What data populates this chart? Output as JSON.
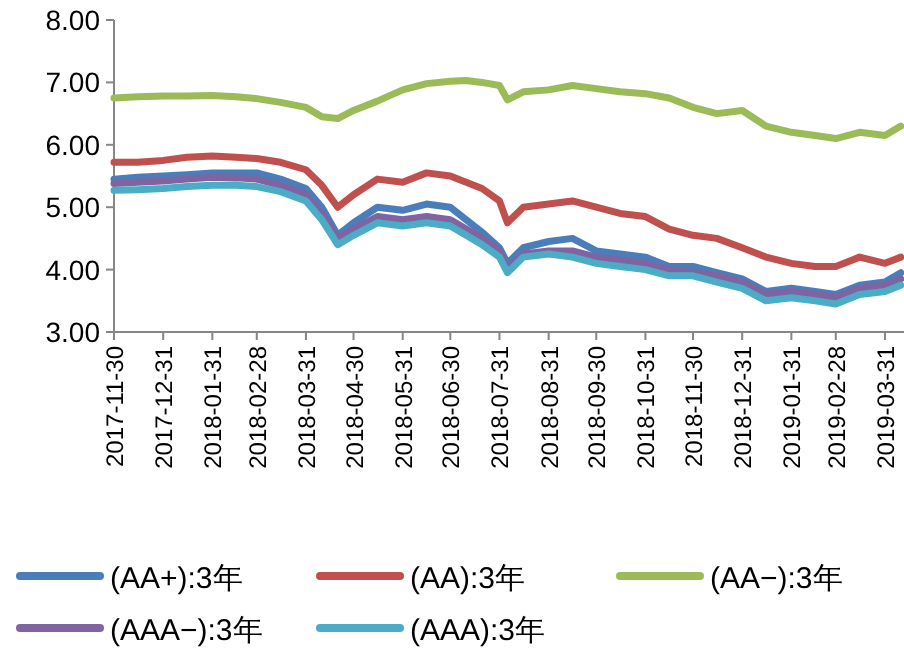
{
  "chart_data": {
    "type": "line",
    "legend": "bottom",
    "grid": false,
    "marker": "none",
    "line_style": "solid",
    "x": [
      "2017-11-30",
      "2017-12-15",
      "2017-12-31",
      "2018-01-15",
      "2018-01-31",
      "2018-02-15",
      "2018-02-28",
      "2018-03-15",
      "2018-03-31",
      "2018-04-10",
      "2018-04-20",
      "2018-04-30",
      "2018-05-15",
      "2018-05-31",
      "2018-06-15",
      "2018-06-30",
      "2018-07-10",
      "2018-07-20",
      "2018-07-31",
      "2018-08-05",
      "2018-08-15",
      "2018-08-31",
      "2018-09-15",
      "2018-09-30",
      "2018-10-15",
      "2018-10-31",
      "2018-11-15",
      "2018-11-30",
      "2018-12-15",
      "2018-12-31",
      "2019-01-15",
      "2019-01-31",
      "2019-02-15",
      "2019-02-28",
      "2019-03-15",
      "2019-03-31",
      "2019-04-10"
    ],
    "xlim": [
      "2017-11-30",
      "2019-04-12"
    ],
    "xticks": [
      "2017-11-30",
      "2017-12-31",
      "2018-01-31",
      "2018-02-28",
      "2018-03-31",
      "2018-04-30",
      "2018-05-31",
      "2018-06-30",
      "2018-07-31",
      "2018-08-31",
      "2018-09-30",
      "2018-10-31",
      "2018-11-30",
      "2018-12-31",
      "2019-01-31",
      "2019-02-28",
      "2019-03-31"
    ],
    "ylim": [
      3,
      8
    ],
    "yticks": [
      {
        "value": 3,
        "label": "3.00"
      },
      {
        "value": 4,
        "label": "4.00"
      },
      {
        "value": 5,
        "label": "5.00"
      },
      {
        "value": 6,
        "label": "6.00"
      },
      {
        "value": 7,
        "label": "7.00"
      },
      {
        "value": 8,
        "label": "8.00"
      }
    ],
    "series": [
      {
        "name": "(AA+):3年",
        "color": "#4a7ebb",
        "values": [
          5.45,
          5.48,
          5.5,
          5.52,
          5.55,
          5.55,
          5.55,
          5.45,
          5.3,
          5.0,
          4.55,
          4.75,
          5.0,
          4.95,
          5.05,
          5.0,
          4.8,
          4.6,
          4.35,
          4.1,
          4.35,
          4.45,
          4.5,
          4.3,
          4.25,
          4.2,
          4.05,
          4.05,
          3.95,
          3.85,
          3.65,
          3.7,
          3.65,
          3.6,
          3.75,
          3.8,
          3.95
        ]
      },
      {
        "name": "(AA):3年",
        "color": "#c0504d",
        "values": [
          5.72,
          5.72,
          5.75,
          5.8,
          5.82,
          5.8,
          5.78,
          5.72,
          5.6,
          5.35,
          5.0,
          5.2,
          5.45,
          5.4,
          5.55,
          5.5,
          5.4,
          5.3,
          5.1,
          4.75,
          5.0,
          5.05,
          5.1,
          5.0,
          4.9,
          4.85,
          4.65,
          4.55,
          4.5,
          4.35,
          4.2,
          4.1,
          4.05,
          4.05,
          4.2,
          4.1,
          4.2
        ]
      },
      {
        "name": "(AA−):3年",
        "color": "#9bbb59",
        "values": [
          6.75,
          6.77,
          6.78,
          6.78,
          6.79,
          6.77,
          6.74,
          6.68,
          6.6,
          6.45,
          6.42,
          6.55,
          6.7,
          6.88,
          6.98,
          7.02,
          7.03,
          7.0,
          6.95,
          6.72,
          6.85,
          6.88,
          6.95,
          6.9,
          6.85,
          6.82,
          6.75,
          6.6,
          6.5,
          6.55,
          6.3,
          6.2,
          6.15,
          6.1,
          6.2,
          6.15,
          6.3
        ]
      },
      {
        "name": "(AAA−):3年",
        "color": "#8064a2",
        "values": [
          5.38,
          5.4,
          5.42,
          5.45,
          5.48,
          5.47,
          5.45,
          5.35,
          5.2,
          4.9,
          4.5,
          4.65,
          4.85,
          4.8,
          4.85,
          4.8,
          4.65,
          4.5,
          4.3,
          4.0,
          4.25,
          4.3,
          4.3,
          4.2,
          4.15,
          4.1,
          4.0,
          3.95,
          3.9,
          3.8,
          3.6,
          3.65,
          3.6,
          3.55,
          3.7,
          3.75,
          3.85
        ]
      },
      {
        "name": "(AAA):3年",
        "color": "#4bacc6",
        "values": [
          5.27,
          5.28,
          5.3,
          5.33,
          5.35,
          5.35,
          5.33,
          5.25,
          5.1,
          4.8,
          4.4,
          4.55,
          4.75,
          4.7,
          4.75,
          4.7,
          4.55,
          4.4,
          4.2,
          3.95,
          4.2,
          4.25,
          4.2,
          4.1,
          4.05,
          4.0,
          3.9,
          3.9,
          3.8,
          3.7,
          3.5,
          3.55,
          3.5,
          3.45,
          3.6,
          3.65,
          3.75
        ]
      }
    ]
  }
}
